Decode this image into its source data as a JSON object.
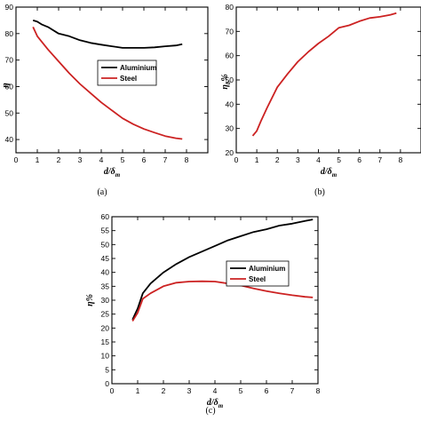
{
  "chart_data": [
    {
      "type": "line",
      "panel": "(a)",
      "ylabel": "η%",
      "ylabel_shown": "η",
      "xlabel": "d/δm",
      "xlabel_main": "d/δ",
      "xlabel_sub": "m",
      "xlim": [
        0,
        9
      ],
      "ylim": [
        35,
        90
      ],
      "xticks": [
        0,
        1,
        2,
        3,
        4,
        5,
        6,
        7,
        8
      ],
      "yticks": [
        40,
        50,
        60,
        70,
        80,
        90
      ],
      "legend": "center-right",
      "series": [
        {
          "name": "Aluminium",
          "color": "#000000",
          "x": [
            0.8,
            1.0,
            1.2,
            1.5,
            2.0,
            2.5,
            3.0,
            3.5,
            4.0,
            4.5,
            5.0,
            5.5,
            6.0,
            6.5,
            7.0,
            7.5,
            7.8
          ],
          "y": [
            85,
            84.5,
            83.5,
            82.5,
            80,
            79,
            77.5,
            76.5,
            75.8,
            75.2,
            74.6,
            74.6,
            74.6,
            74.8,
            75.2,
            75.5,
            76
          ]
        },
        {
          "name": "Steel",
          "color": "#cc2222",
          "x": [
            0.8,
            1.0,
            1.5,
            2.0,
            2.5,
            3.0,
            3.5,
            4.0,
            4.5,
            5.0,
            5.5,
            6.0,
            6.5,
            7.0,
            7.5,
            7.8
          ],
          "y": [
            82.5,
            79,
            74,
            69.5,
            65,
            61,
            57.5,
            54,
            51,
            48,
            45.8,
            44,
            42.6,
            41.3,
            40.5,
            40.2
          ]
        }
      ]
    },
    {
      "type": "line",
      "panel": "(b)",
      "ylabel": "η_b%",
      "ylabel_main": "η",
      "ylabel_sub": "b",
      "ylabel_unit": "%",
      "xlabel": "d/δm",
      "xlabel_main": "d/δ",
      "xlabel_sub": "m",
      "xlim": [
        0,
        9
      ],
      "ylim": [
        20,
        80
      ],
      "xticks": [
        0,
        1,
        2,
        3,
        4,
        5,
        6,
        7,
        8
      ],
      "yticks": [
        20,
        30,
        40,
        50,
        60,
        70,
        80
      ],
      "series": [
        {
          "color": "#cc2222",
          "x": [
            0.8,
            1.0,
            1.2,
            1.5,
            2.0,
            2.5,
            3.0,
            3.5,
            4.0,
            4.5,
            5.0,
            5.5,
            6.0,
            6.5,
            7.0,
            7.5,
            7.8
          ],
          "y": [
            27,
            29,
            33,
            38.5,
            47,
            52.5,
            57.5,
            61.5,
            65,
            68,
            71.5,
            72.5,
            74.2,
            75.5,
            76,
            76.8,
            77.5
          ]
        }
      ]
    },
    {
      "type": "line",
      "panel": "(c)",
      "ylabel": "η%",
      "xlabel": "d/δm",
      "xlabel_main": "d/δ",
      "xlabel_sub": "m",
      "xlim": [
        0,
        8
      ],
      "ylim": [
        0,
        60
      ],
      "xticks": [
        0,
        1,
        2,
        3,
        4,
        5,
        6,
        7,
        8
      ],
      "yticks": [
        0,
        5,
        10,
        15,
        20,
        25,
        30,
        35,
        40,
        45,
        50,
        55,
        60
      ],
      "legend": "center-right",
      "series": [
        {
          "name": "Aluminium",
          "color": "#000000",
          "x": [
            0.8,
            1.0,
            1.2,
            1.5,
            2.0,
            2.5,
            3.0,
            3.5,
            4.0,
            4.5,
            5.0,
            5.5,
            6.0,
            6.5,
            7.0,
            7.5,
            7.8
          ],
          "y": [
            23,
            27,
            32.5,
            36,
            40,
            43,
            45.5,
            47.5,
            49.5,
            51.5,
            53,
            54.5,
            55.5,
            56.8,
            57.5,
            58.5,
            59
          ]
        },
        {
          "name": "Steel",
          "color": "#cc2222",
          "x": [
            0.8,
            1.0,
            1.2,
            1.5,
            2.0,
            2.5,
            3.0,
            3.5,
            4.0,
            4.5,
            5.0,
            5.5,
            6.0,
            6.5,
            7.0,
            7.5,
            7.8
          ],
          "y": [
            22.5,
            25.5,
            30.5,
            32.5,
            35,
            36.3,
            36.7,
            36.8,
            36.7,
            36,
            35.3,
            34.2,
            33.3,
            32.5,
            31.8,
            31.2,
            31
          ]
        }
      ]
    }
  ]
}
